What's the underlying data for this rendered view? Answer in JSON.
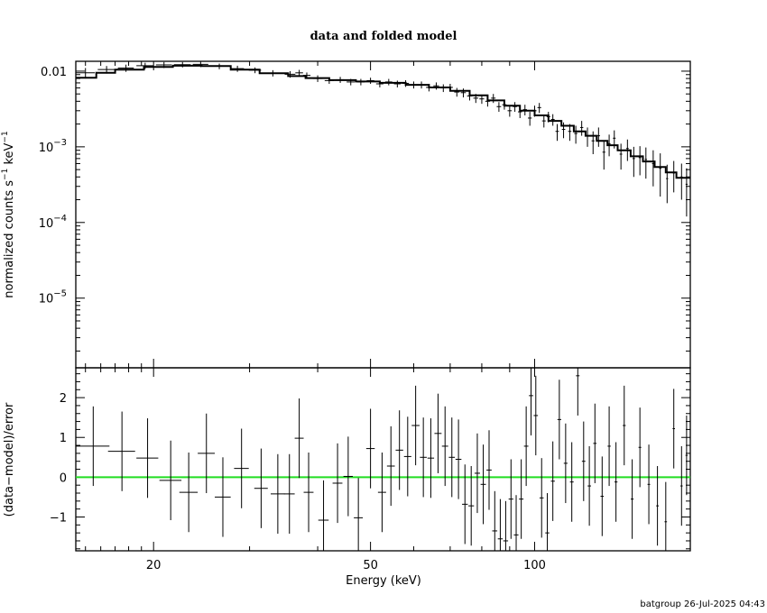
{
  "chart_data": [
    {
      "type": "scatter",
      "title": "data and folded model",
      "ylabel": "normalized counts s^-1 keV^-1",
      "xscale": "log",
      "yscale": "log",
      "xlim": [
        14.4,
        193
      ],
      "ylim": [
        1.2e-06,
        0.0135
      ],
      "x_ticks": [
        20,
        50,
        100
      ],
      "y_ticks": [
        {
          "value": 0.01,
          "label": "0.01"
        },
        {
          "value": 0.001,
          "base": "10",
          "exp": "−3"
        },
        {
          "value": 0.0001,
          "base": "10",
          "exp": "−4"
        },
        {
          "value": 1e-05,
          "base": "10",
          "exp": "−5"
        }
      ],
      "series": [
        {
          "role": "data",
          "points": [
            [
              15.0,
              0.0095,
              0.6,
              0.0015
            ],
            [
              16.4,
              0.0105,
              0.6,
              0.0012
            ],
            [
              17.8,
              0.011,
              0.6,
              0.0012
            ],
            [
              19.3,
              0.0118,
              0.7,
              0.0011
            ],
            [
              20.9,
              0.0121,
              0.7,
              0.0011
            ],
            [
              22.6,
              0.0122,
              0.8,
              0.001
            ],
            [
              24.4,
              0.0123,
              0.8,
              0.001
            ],
            [
              26.4,
              0.0116,
              0.8,
              0.001
            ],
            [
              28.5,
              0.0108,
              0.8,
              0.001
            ],
            [
              30.7,
              0.0103,
              0.8,
              0.0009
            ],
            [
              33.1,
              0.0094,
              0.8,
              0.0009
            ],
            [
              35.6,
              0.0091,
              0.8,
              0.0009
            ],
            [
              37.0,
              0.0095,
              0.6,
              0.0009
            ],
            [
              38.2,
              0.0088,
              0.6,
              0.0008
            ],
            [
              40.0,
              0.008,
              0.8,
              0.0008
            ],
            [
              42.0,
              0.0075,
              0.8,
              0.0007
            ],
            [
              44.0,
              0.0077,
              0.8,
              0.0007
            ],
            [
              46.0,
              0.0072,
              0.8,
              0.0007
            ],
            [
              48.0,
              0.0072,
              0.8,
              0.0007
            ],
            [
              50.0,
              0.0075,
              0.8,
              0.0007
            ],
            [
              52.0,
              0.0068,
              0.8,
              0.0007
            ],
            [
              54.0,
              0.0072,
              0.8,
              0.0007
            ],
            [
              56.0,
              0.0068,
              0.8,
              0.0007
            ],
            [
              58.0,
              0.0069,
              0.8,
              0.0007
            ],
            [
              60.0,
              0.0066,
              0.8,
              0.0007
            ],
            [
              62.0,
              0.0066,
              0.8,
              0.0007
            ],
            [
              64.0,
              0.0061,
              0.8,
              0.0007
            ],
            [
              66.0,
              0.0064,
              0.8,
              0.0007
            ],
            [
              68.0,
              0.006,
              0.8,
              0.0007
            ],
            [
              70.0,
              0.0061,
              0.8,
              0.0007
            ],
            [
              72.0,
              0.0053,
              0.8,
              0.0007
            ],
            [
              74.0,
              0.0052,
              0.8,
              0.0007
            ],
            [
              76.0,
              0.0047,
              0.8,
              0.0006
            ],
            [
              78.0,
              0.0044,
              0.8,
              0.0006
            ],
            [
              80.0,
              0.0043,
              0.8,
              0.0006
            ],
            [
              82.0,
              0.004,
              0.8,
              0.0006
            ],
            [
              84.0,
              0.0044,
              0.8,
              0.0006
            ],
            [
              86.0,
              0.0034,
              0.8,
              0.0005
            ],
            [
              88.0,
              0.0036,
              0.8,
              0.0005
            ],
            [
              90.0,
              0.003,
              0.8,
              0.0005
            ],
            [
              92.0,
              0.0034,
              0.8,
              0.0005
            ],
            [
              94.0,
              0.0029,
              0.8,
              0.0005
            ],
            [
              96.0,
              0.0031,
              0.8,
              0.0005
            ],
            [
              98.0,
              0.0024,
              0.8,
              0.0005
            ],
            [
              100.0,
              0.003,
              0.8,
              0.0005
            ],
            [
              102.0,
              0.0033,
              0.8,
              0.0005
            ],
            [
              104.0,
              0.0022,
              0.8,
              0.0004
            ],
            [
              106.0,
              0.0025,
              0.8,
              0.0004
            ],
            [
              108.0,
              0.0023,
              0.8,
              0.0004
            ],
            [
              110.0,
              0.0016,
              0.8,
              0.0004
            ],
            [
              113.0,
              0.0017,
              0.8,
              0.0004
            ],
            [
              116.0,
              0.0016,
              0.8,
              0.0004
            ],
            [
              119.0,
              0.0015,
              0.8,
              0.0004
            ],
            [
              122.0,
              0.0018,
              0.8,
              0.0004
            ],
            [
              125.0,
              0.0014,
              0.8,
              0.0004
            ],
            [
              128.0,
              0.0012,
              0.8,
              0.0004
            ],
            [
              131.0,
              0.0014,
              0.8,
              0.0004
            ],
            [
              134.0,
              0.00085,
              0.8,
              0.00035
            ],
            [
              137.0,
              0.0011,
              0.8,
              0.00035
            ],
            [
              140.0,
              0.0013,
              0.8,
              0.00035
            ],
            [
              144.0,
              0.0008,
              0.8,
              0.0003
            ],
            [
              148.0,
              0.00095,
              0.8,
              0.0003
            ],
            [
              152.0,
              0.0007,
              0.8,
              0.0003
            ],
            [
              156.0,
              0.00072,
              0.8,
              0.0003
            ],
            [
              160.0,
              0.00068,
              0.8,
              0.0003
            ],
            [
              165.0,
              0.0006,
              0.8,
              0.0003
            ],
            [
              170.0,
              0.00052,
              0.8,
              0.0003
            ],
            [
              175.0,
              0.00038,
              0.8,
              0.0002
            ],
            [
              180.0,
              0.00045,
              0.8,
              0.0002
            ],
            [
              186.0,
              0.0004,
              0.8,
              0.0002
            ],
            [
              190.0,
              0.00032,
              0.8,
              0.0002
            ]
          ]
        },
        {
          "role": "model",
          "steps": [
            [
              14.4,
              15.7,
              0.0082
            ],
            [
              15.7,
              17.0,
              0.0095
            ],
            [
              17.0,
              19.2,
              0.0105
            ],
            [
              19.2,
              21.7,
              0.0114
            ],
            [
              21.7,
              24.5,
              0.0118
            ],
            [
              24.5,
              27.7,
              0.0117
            ],
            [
              27.7,
              31.3,
              0.0105
            ],
            [
              31.3,
              35.3,
              0.0094
            ],
            [
              35.3,
              38.0,
              0.0086
            ],
            [
              38.0,
              42.0,
              0.0081
            ],
            [
              42.0,
              47.0,
              0.0076
            ],
            [
              47.0,
              52.0,
              0.0073
            ],
            [
              52.0,
              58.0,
              0.007
            ],
            [
              58.0,
              64.0,
              0.0066
            ],
            [
              64.0,
              70.0,
              0.0061
            ],
            [
              70.0,
              76.0,
              0.0055
            ],
            [
              76.0,
              82.0,
              0.0048
            ],
            [
              82.0,
              88.0,
              0.0041
            ],
            [
              88.0,
              94.0,
              0.0035
            ],
            [
              94.0,
              100.0,
              0.003
            ],
            [
              100.0,
              106.0,
              0.0026
            ],
            [
              106.0,
              112.0,
              0.0022
            ],
            [
              112.0,
              118.0,
              0.0019
            ],
            [
              118.0,
              124.0,
              0.0016
            ],
            [
              124.0,
              130.0,
              0.0014
            ],
            [
              130.0,
              136.0,
              0.0012
            ],
            [
              136.0,
              142.0,
              0.00105
            ],
            [
              142.0,
              150.0,
              0.0009
            ],
            [
              150.0,
              158.0,
              0.00075
            ],
            [
              158.0,
              166.0,
              0.00064
            ],
            [
              166.0,
              174.0,
              0.00054
            ],
            [
              174.0,
              182.0,
              0.00046
            ],
            [
              182.0,
              193.0,
              0.00039
            ]
          ]
        }
      ]
    },
    {
      "type": "scatter",
      "xlabel": "Energy (keV)",
      "ylabel": "(data−model)/error",
      "xscale": "log",
      "xlim": [
        14.4,
        193
      ],
      "ylim": [
        -1.85,
        2.75
      ],
      "x_ticks": [
        20,
        50,
        100
      ],
      "y_ticks": [
        2,
        1,
        0,
        -1
      ],
      "reference_line": {
        "y": 0,
        "color": "#22dd22"
      },
      "series": [
        {
          "role": "residuals",
          "points": [
            [
              15.5,
              0.78,
              1.1,
              1.0
            ],
            [
              17.5,
              0.65,
              1.0,
              1.0
            ],
            [
              19.5,
              0.48,
              0.9,
              1.0
            ],
            [
              21.5,
              -0.08,
              1.0,
              1.0
            ],
            [
              23.2,
              -0.38,
              0.9,
              1.0
            ],
            [
              25.0,
              0.6,
              0.9,
              1.0
            ],
            [
              26.8,
              -0.5,
              0.9,
              1.0
            ],
            [
              29.0,
              0.22,
              0.9,
              1.0
            ],
            [
              31.5,
              -0.28,
              0.9,
              1.0
            ],
            [
              33.8,
              -0.42,
              1.0,
              1.0
            ],
            [
              35.5,
              -0.42,
              0.8,
              1.0
            ],
            [
              37.0,
              0.98,
              0.7,
              1.0
            ],
            [
              38.5,
              -0.38,
              0.8,
              1.0
            ],
            [
              41.0,
              -1.08,
              0.9,
              1.0
            ],
            [
              43.5,
              -0.15,
              0.9,
              1.0
            ],
            [
              45.5,
              0.02,
              0.9,
              1.0
            ],
            [
              47.5,
              -1.02,
              0.9,
              1.0
            ],
            [
              50.0,
              0.72,
              0.9,
              1.0
            ],
            [
              52.5,
              -0.38,
              0.9,
              1.0
            ],
            [
              54.5,
              0.28,
              0.9,
              1.0
            ],
            [
              56.5,
              0.68,
              0.9,
              1.0
            ],
            [
              58.5,
              0.52,
              0.9,
              1.0
            ],
            [
              60.5,
              1.3,
              1.0,
              1.0
            ],
            [
              62.5,
              0.5,
              0.9,
              1.0
            ],
            [
              64.5,
              0.48,
              0.9,
              1.0
            ],
            [
              66.5,
              1.1,
              1.0,
              1.0
            ],
            [
              68.5,
              0.78,
              0.9,
              1.0
            ],
            [
              70.5,
              0.5,
              0.9,
              1.0
            ],
            [
              72.5,
              0.45,
              0.9,
              1.0
            ],
            [
              74.5,
              -0.68,
              0.9,
              1.0
            ],
            [
              76.5,
              -0.72,
              0.9,
              1.0
            ],
            [
              78.5,
              0.1,
              0.9,
              1.0
            ],
            [
              80.5,
              -0.18,
              0.9,
              1.0
            ],
            [
              82.5,
              0.18,
              0.9,
              1.0
            ],
            [
              84.5,
              -1.35,
              0.9,
              1.0
            ],
            [
              86.5,
              -1.55,
              0.9,
              1.0
            ],
            [
              88.5,
              -1.6,
              0.9,
              1.0
            ],
            [
              90.5,
              -0.55,
              0.9,
              1.0
            ],
            [
              92.5,
              -1.45,
              0.9,
              1.0
            ],
            [
              94.5,
              -0.55,
              0.9,
              1.0
            ],
            [
              96.5,
              0.78,
              0.9,
              1.0
            ],
            [
              98.5,
              2.05,
              0.9,
              1.0
            ],
            [
              100.5,
              1.55,
              0.9,
              1.0
            ],
            [
              103.0,
              -0.52,
              0.9,
              1.0
            ],
            [
              105.5,
              -1.4,
              0.9,
              1.0
            ],
            [
              108.0,
              -0.1,
              0.9,
              1.0
            ],
            [
              111.0,
              1.45,
              0.9,
              1.0
            ],
            [
              114.0,
              0.35,
              0.9,
              1.0
            ],
            [
              117.0,
              -0.12,
              0.9,
              1.0
            ],
            [
              120.0,
              2.55,
              0.9,
              1.0
            ],
            [
              123.0,
              0.4,
              0.9,
              1.0
            ],
            [
              126.0,
              -0.22,
              0.9,
              1.0
            ],
            [
              129.0,
              0.85,
              0.9,
              1.0
            ],
            [
              133.0,
              -0.48,
              0.9,
              1.0
            ],
            [
              137.0,
              0.78,
              0.9,
              1.0
            ],
            [
              141.0,
              -0.12,
              0.9,
              1.0
            ],
            [
              146.0,
              1.3,
              0.9,
              1.0
            ],
            [
              151.0,
              -0.55,
              0.9,
              1.0
            ],
            [
              156.0,
              0.75,
              0.9,
              1.0
            ],
            [
              162.0,
              -0.18,
              0.9,
              1.0
            ],
            [
              168.0,
              -0.72,
              0.9,
              1.0
            ],
            [
              174.0,
              -1.12,
              0.9,
              1.0
            ],
            [
              180.0,
              1.22,
              0.9,
              1.0
            ],
            [
              186.0,
              -0.22,
              0.9,
              1.0
            ],
            [
              190.0,
              0.55,
              0.9,
              1.0
            ]
          ]
        }
      ]
    }
  ],
  "footer": {
    "stamp": "batgroup 26-Jul-2025 04:43"
  }
}
